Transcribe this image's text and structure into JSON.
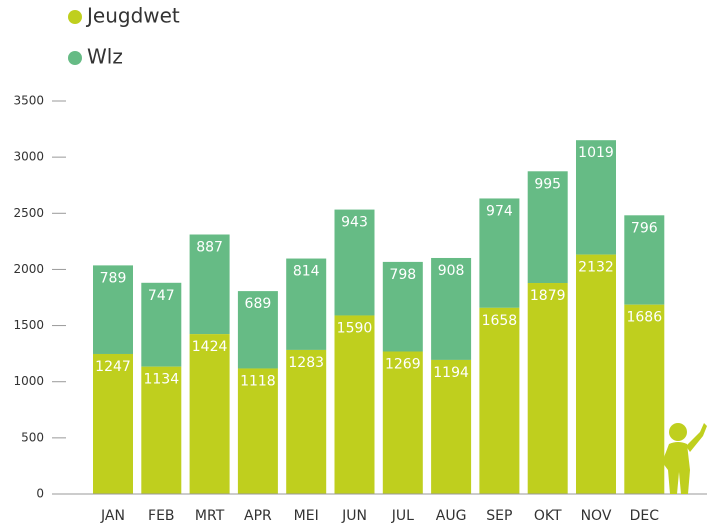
{
  "chart_data": {
    "type": "stacked_bar",
    "categories": [
      "JAN",
      "FEB",
      "MRT",
      "APR",
      "MEI",
      "JUN",
      "JUL",
      "AUG",
      "SEP",
      "OKT",
      "NOV",
      "DEC"
    ],
    "series": [
      {
        "name": "Jeugdwet",
        "color": "#bfcf1e",
        "values": [
          1247,
          1134,
          1424,
          1118,
          1283,
          1590,
          1269,
          1194,
          1658,
          1879,
          2132,
          1686
        ]
      },
      {
        "name": "Wlz",
        "color": "#66bb85",
        "values": [
          789,
          747,
          887,
          689,
          814,
          943,
          798,
          908,
          974,
          995,
          1019,
          796
        ]
      }
    ],
    "ylim": [
      0,
      3500
    ],
    "yticks": [
      0,
      500,
      1000,
      1500,
      2000,
      2500,
      3000,
      3500
    ]
  }
}
